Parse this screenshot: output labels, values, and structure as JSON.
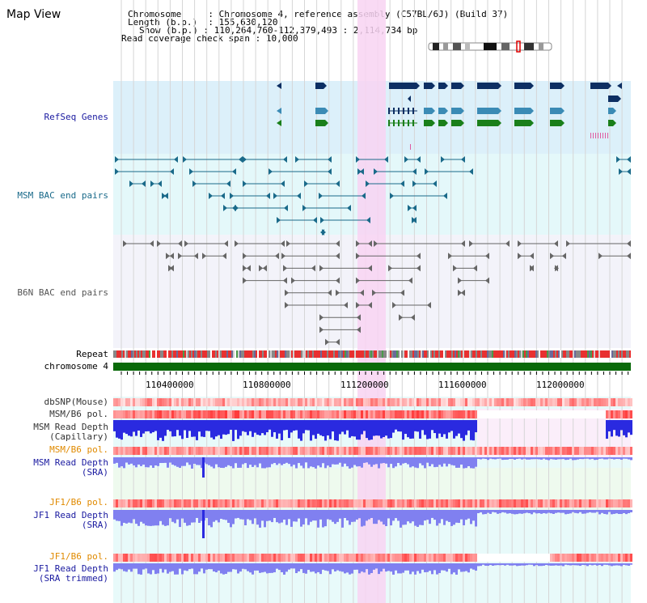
{
  "app": {
    "title": "Map View"
  },
  "header": {
    "chromosome_key": "Chromosome",
    "chromosome_val": "Chromosome 4, reference assembly (C57BL/6J) (Build 37)",
    "length_key": "Length (b.p.)",
    "length_val": "155,630,120",
    "show_key": "Show (b.p.)",
    "show_val": "110,264,760-112,379,493 : 2,114,734 bp",
    "coverage_key": "Read coverage check span",
    "coverage_val": "10,000"
  },
  "tracks": {
    "refseq": "RefSeq Genes",
    "msm_bac": "MSM BAC end pairs",
    "b6n_bac": "B6N BAC end pairs",
    "repeat": "Repeat",
    "chromosome": "chromosome 4",
    "dbsnp": "dbSNP(Mouse)",
    "msm_b6_pol_1": "MSM/B6 pol.",
    "msm_read_depth_cap_1": "MSM Read Depth",
    "msm_read_depth_cap_2": "(Capillary)",
    "msm_b6_pol_2": "MSM/B6 pol.",
    "msm_read_depth_sra_1": "MSM Read Depth",
    "msm_read_depth_sra_2": "(SRA)",
    "jf1_b6_pol_1": "JF1/B6 pol.",
    "jf1_read_depth_1": "JF1 Read Depth",
    "jf1_read_depth_2": "(SRA)",
    "jf1_b6_pol_2": "JF1/B6 pol.",
    "jf1_trim_1": "JF1 Read Depth",
    "jf1_trim_2": "(SRA trimmed)"
  },
  "axis": {
    "ticks": [
      "110400000",
      "110800000",
      "111200000",
      "111600000",
      "112000000"
    ]
  },
  "colors": {
    "refseq_bg": "#dcf0fa",
    "msm_bg": "#e4f8fa",
    "b6n_bg": "#f3f3fa",
    "highlight": "#f8d4f2",
    "gene_dark": "#0d2f63",
    "gene_mid": "#3b8bb5",
    "gene_green": "#1a7f1a",
    "msm_line": "#1a6a8a",
    "b6n_line": "#666666",
    "chromosome_bar": "#0a6a0a",
    "depth_blue": "#2a2ae0",
    "depth_light": "#8080f0",
    "snp_red": "#ee4444",
    "label_blue": "#1a1aa0",
    "label_orange": "#e08a00"
  }
}
